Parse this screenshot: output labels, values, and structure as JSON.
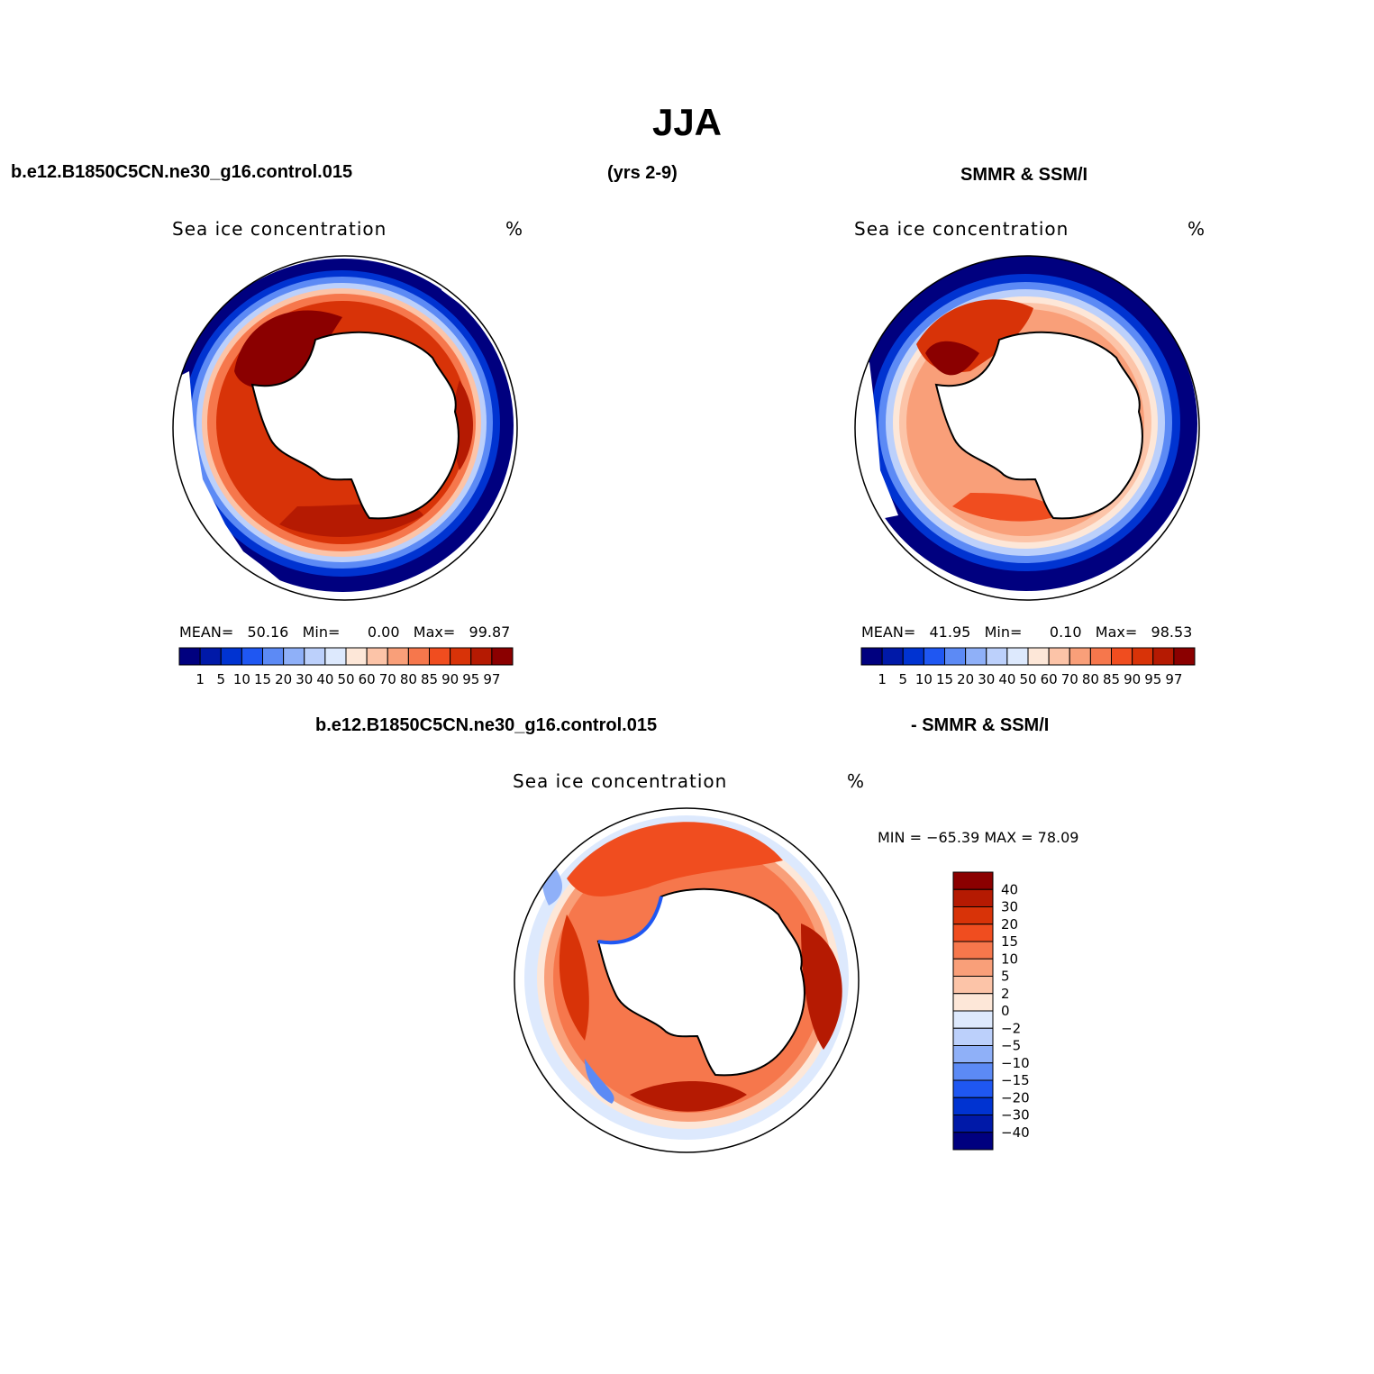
{
  "title": "JJA",
  "header": {
    "left": "b.e12.B1850C5CN.ne30_g16.control.015",
    "center": "(yrs 2-9)",
    "right": "SMMR & SSM/I",
    "diff_left": "b.e12.B1850C5CN.ne30_g16.control.015",
    "diff_right": "- SMMR & SSM/I"
  },
  "colors": {
    "abs_scale": [
      "#00007f",
      "#0019a8",
      "#0033d1",
      "#1f57f2",
      "#5c8af5",
      "#8fb0f8",
      "#bcd0fb",
      "#dde9fd",
      "#fde7d8",
      "#fcc4a8",
      "#f99f79",
      "#f6774c",
      "#f04d1f",
      "#d83308",
      "#b51a02",
      "#8b0000"
    ],
    "diff_scale": [
      "#00007f",
      "#0019a8",
      "#0033d1",
      "#1f57f2",
      "#5c8af5",
      "#8fb0f8",
      "#bcd0fb",
      "#dde9fd",
      "#fde7d8",
      "#fcc4a8",
      "#f99f79",
      "#f6774c",
      "#f04d1f",
      "#d83308",
      "#b51a02",
      "#8b0000"
    ]
  },
  "panels": [
    {
      "id": "model",
      "title": "Sea ice concentration",
      "unit": "%",
      "mean_label": "MEAN=",
      "mean": "50.16",
      "min_label": "Min=",
      "min": "0.00",
      "max_label": "Max=",
      "max": "99.87"
    },
    {
      "id": "obs",
      "title": "Sea ice concentration",
      "unit": "%",
      "mean_label": "MEAN=",
      "mean": "41.95",
      "min_label": "Min=",
      "min": "0.10",
      "max_label": "Max=",
      "max": "98.53"
    },
    {
      "id": "diff",
      "title": "Sea ice concentration",
      "unit": "%",
      "minmax_text": "MIN = −65.39 MAX =   78.09"
    }
  ],
  "abs_colorbar_labels": [
    "1",
    "5",
    "10",
    "15",
    "20",
    "30",
    "40",
    "50",
    "60",
    "70",
    "80",
    "85",
    "90",
    "95",
    "97"
  ],
  "diff_colorbar_labels": [
    "40",
    "30",
    "20",
    "15",
    "10",
    "5",
    "2",
    "0",
    "−2",
    "−5",
    "−10",
    "−15",
    "−20",
    "−30",
    "−40"
  ]
}
